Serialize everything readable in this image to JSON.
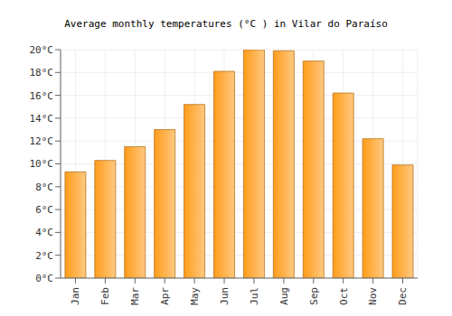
{
  "chart_data": {
    "type": "bar",
    "title": "Average monthly temperatures (°C ) in Vilar do Paraíso",
    "categories": [
      "Jan",
      "Feb",
      "Mar",
      "Apr",
      "May",
      "Jun",
      "Jul",
      "Aug",
      "Sep",
      "Oct",
      "Nov",
      "Dec"
    ],
    "values": [
      9.3,
      10.3,
      11.5,
      13.0,
      15.2,
      18.1,
      20.0,
      19.9,
      19.0,
      16.2,
      12.2,
      9.9
    ],
    "color": "#ff9c1a",
    "ylim": [
      0,
      20
    ],
    "yticks": [
      {
        "value": 0,
        "label": "0°C"
      },
      {
        "value": 2,
        "label": "2°C"
      },
      {
        "value": 4,
        "label": "4°C"
      },
      {
        "value": 6,
        "label": "6°C"
      },
      {
        "value": 8,
        "label": "8°C"
      },
      {
        "value": 10,
        "label": "10°C"
      },
      {
        "value": 12,
        "label": "12°C"
      },
      {
        "value": 14,
        "label": "14°C"
      },
      {
        "value": 16,
        "label": "16°C"
      },
      {
        "value": 18,
        "label": "18°C"
      },
      {
        "value": 20,
        "label": "20°C"
      }
    ],
    "grid": true
  }
}
